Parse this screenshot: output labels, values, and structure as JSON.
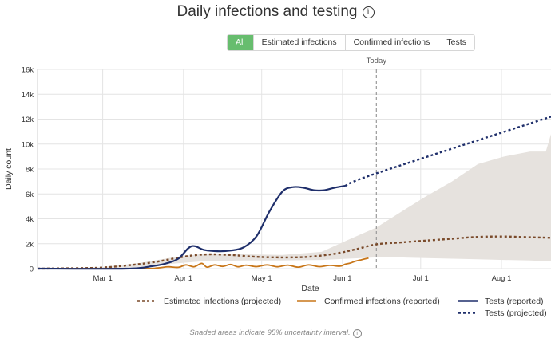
{
  "header": {
    "title": "Daily infections and testing",
    "info_icon": "info-icon"
  },
  "tabs": [
    {
      "label": "All",
      "active": true
    },
    {
      "label": "Estimated infections",
      "active": false
    },
    {
      "label": "Confirmed infections",
      "active": false
    },
    {
      "label": "Tests",
      "active": false
    }
  ],
  "footnote": "Shaded areas indicate 95% uncertainty interval.",
  "colors": {
    "estimated": "#7a4a2a",
    "confirmed": "#c87619",
    "tests": "#1f2f6b",
    "band": "#e6e2de",
    "today": "#999999"
  },
  "chart_data": {
    "type": "line",
    "title": "Daily infections and testing",
    "xlabel": "Date",
    "ylabel": "Daily count",
    "x_unit": "day of year 2020",
    "xlim": [
      36,
      233
    ],
    "ylim": [
      0,
      16000
    ],
    "yticks": [
      0,
      2000,
      4000,
      6000,
      8000,
      10000,
      12000,
      14000,
      16000
    ],
    "ytick_labels": [
      "0",
      "2k",
      "4k",
      "6k",
      "8k",
      "10k",
      "12k",
      "14k",
      "16k"
    ],
    "xticks": [
      61,
      92,
      122,
      153,
      183,
      214
    ],
    "xtick_labels": [
      "Mar 1",
      "Apr 1",
      "May 1",
      "Jun 1",
      "Jul 1",
      "Aug 1"
    ],
    "today": {
      "x": 166,
      "label": "Today"
    },
    "grid": true,
    "legend_position": "bottom-right",
    "series": [
      {
        "name": "Estimated infections (projected)",
        "style": "dotted",
        "color_key": "estimated",
        "x": [
          36,
          50,
          60,
          70,
          80,
          88,
          95,
          102,
          110,
          120,
          130,
          140,
          150,
          158,
          166,
          175,
          185,
          195,
          205,
          215,
          225,
          233
        ],
        "y": [
          0,
          30,
          80,
          250,
          500,
          800,
          1050,
          1150,
          1100,
          950,
          900,
          950,
          1200,
          1550,
          1950,
          2100,
          2250,
          2400,
          2550,
          2580,
          2520,
          2480
        ]
      },
      {
        "name": "Confirmed infections (reported)",
        "style": "solid",
        "color_key": "confirmed",
        "x": [
          36,
          75,
          82,
          86,
          90,
          93,
          96,
          99,
          101,
          104,
          107,
          110,
          113,
          116,
          120,
          124,
          128,
          132,
          136,
          140,
          144,
          148,
          152,
          154,
          156,
          158,
          160,
          163
        ],
        "y": [
          0,
          0,
          50,
          150,
          100,
          300,
          150,
          420,
          120,
          300,
          180,
          330,
          150,
          280,
          160,
          300,
          150,
          280,
          120,
          300,
          160,
          260,
          200,
          350,
          450,
          600,
          700,
          850
        ]
      },
      {
        "name": "Tests (reported)",
        "style": "solid",
        "color_key": "tests",
        "x": [
          36,
          70,
          80,
          85,
          90,
          95,
          100,
          105,
          110,
          115,
          120,
          125,
          130,
          134,
          138,
          142,
          146,
          150,
          154
        ],
        "y": [
          0,
          0,
          200,
          400,
          800,
          1800,
          1500,
          1400,
          1450,
          1700,
          2600,
          4600,
          6200,
          6550,
          6500,
          6300,
          6300,
          6500,
          6650
        ]
      },
      {
        "name": "Tests (projected)",
        "style": "dotted",
        "color_key": "tests",
        "x": [
          154,
          166,
          233
        ],
        "y": [
          6650,
          7650,
          12200
        ]
      }
    ],
    "uncertainty_band": {
      "x": [
        36,
        60,
        75,
        88,
        100,
        115,
        130,
        145,
        155,
        166,
        175,
        185,
        195,
        205,
        215,
        225,
        231,
        233
      ],
      "upper": [
        0,
        100,
        450,
        900,
        1200,
        1150,
        1100,
        1350,
        2300,
        3300,
        4500,
        5800,
        7000,
        8400,
        9000,
        9400,
        9400,
        10800
      ],
      "lower": [
        0,
        0,
        150,
        400,
        600,
        650,
        650,
        700,
        800,
        900,
        900,
        850,
        800,
        750,
        700,
        650,
        600,
        600
      ]
    }
  }
}
